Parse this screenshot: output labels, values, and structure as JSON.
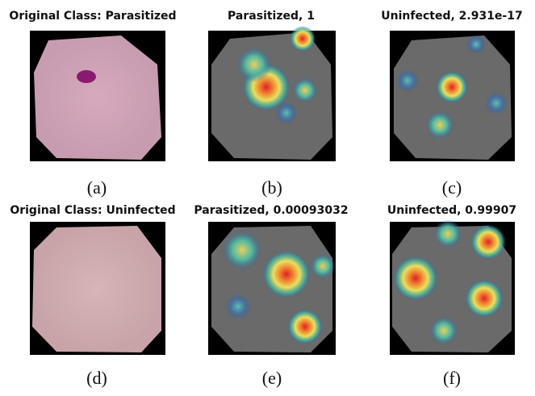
{
  "panels": [
    {
      "title": "Original Class: Parasitized",
      "caption": "(a)"
    },
    {
      "title": "Parasitized, 1",
      "caption": "(b)"
    },
    {
      "title": "Uninfected, 2.931e-17",
      "caption": "(c)"
    },
    {
      "title": "Original Class: Uninfected",
      "caption": "(d)"
    },
    {
      "title": "Parasitized, 0.00093032",
      "caption": "(e)"
    },
    {
      "title": "Uninfected, 0.99907",
      "caption": "(f)"
    }
  ]
}
